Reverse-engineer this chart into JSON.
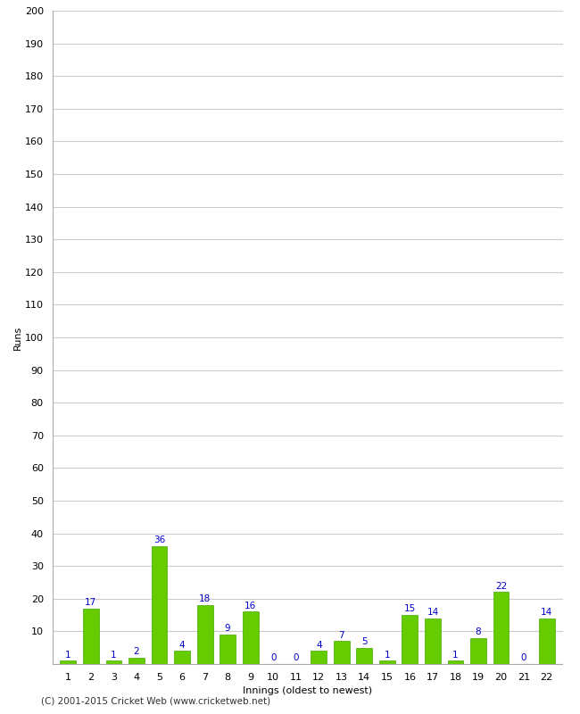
{
  "xlabel": "Innings (oldest to newest)",
  "ylabel": "Runs",
  "innings": [
    1,
    2,
    3,
    4,
    5,
    6,
    7,
    8,
    9,
    10,
    11,
    12,
    13,
    14,
    15,
    16,
    17,
    18,
    19,
    20,
    21,
    22
  ],
  "values": [
    1,
    17,
    1,
    2,
    36,
    4,
    18,
    9,
    16,
    0,
    0,
    4,
    7,
    5,
    1,
    15,
    14,
    1,
    8,
    22,
    0,
    14
  ],
  "bar_color": "#66cc00",
  "bar_edge_color": "#44aa00",
  "label_color": "#0000cc",
  "background_color": "#ffffff",
  "grid_color": "#cccccc",
  "ylim": [
    0,
    200
  ],
  "yticks": [
    0,
    10,
    20,
    30,
    40,
    50,
    60,
    70,
    80,
    90,
    100,
    110,
    120,
    130,
    140,
    150,
    160,
    170,
    180,
    190,
    200
  ],
  "footer": "(C) 2001-2015 Cricket Web (www.cricketweb.net)",
  "label_fontsize": 7.5,
  "axis_fontsize": 8,
  "tick_fontsize": 8
}
